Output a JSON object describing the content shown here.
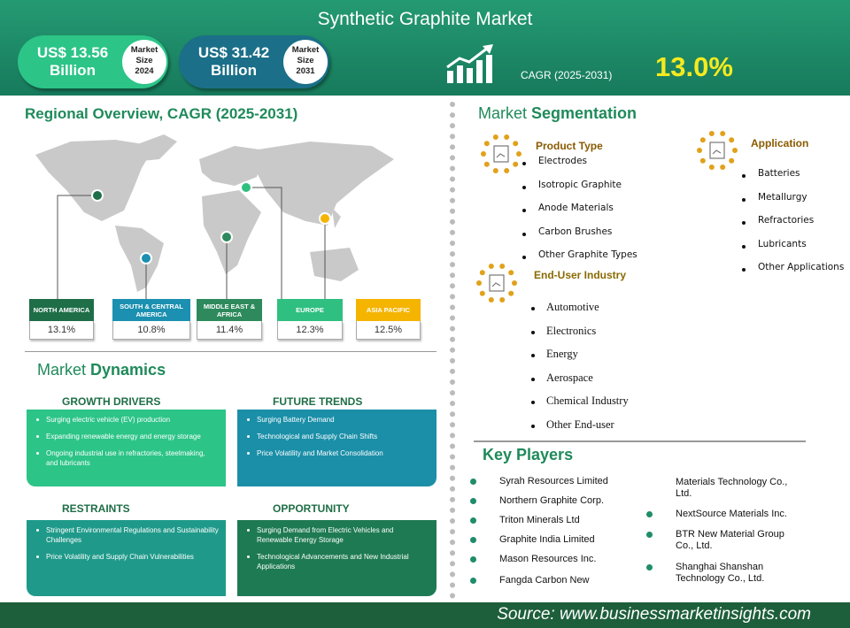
{
  "header": {
    "title": "Synthetic Graphite Market",
    "market_size": [
      {
        "value": "US$ 13.56 Billion",
        "label": "Market Size 2024"
      },
      {
        "value": "US$ 31.42 Billion",
        "label": "Market Size 2031"
      }
    ],
    "cagr_label": "CAGR (2025-2031)",
    "cagr_value": "13.0%"
  },
  "regional": {
    "title": "Regional Overview, CAGR (2025-2031)",
    "regions": [
      {
        "name": "NORTH AMERICA",
        "cagr": "13.1%"
      },
      {
        "name": "SOUTH & CENTRAL AMERICA",
        "cagr": "10.8%"
      },
      {
        "name": "MIDDLE EAST & AFRICA",
        "cagr": "11.4%"
      },
      {
        "name": "EUROPE",
        "cagr": "12.3%"
      },
      {
        "name": "ASIA PACIFIC",
        "cagr": "12.5%"
      }
    ]
  },
  "segmentation": {
    "title": [
      "Market",
      "Segmentation"
    ],
    "groups": [
      {
        "title": "Product Type",
        "items": [
          "Electrodes",
          "Isotropic Graphite",
          "Anode Materials",
          "Carbon Brushes",
          "Other Graphite Types"
        ]
      },
      {
        "title": "Application",
        "items": [
          "Batteries",
          "Metallurgy",
          "Refractories",
          "Lubricants",
          "Other Applications"
        ]
      },
      {
        "title": "End-User Industry",
        "items": [
          "Automotive",
          "Electronics",
          "Energy",
          "Aerospace",
          "Chemical Industry",
          "Other End-user"
        ]
      }
    ]
  },
  "dynamics": {
    "title": [
      "Market",
      "Dynamics"
    ],
    "cards": [
      {
        "title": "GROWTH DRIVERS",
        "items": [
          "Surging electric vehicle (EV) production",
          "Expanding renewable energy and energy storage",
          "Ongoing industrial use in refractories, steelmaking, and lubricants"
        ]
      },
      {
        "title": "FUTURE TRENDS",
        "items": [
          "Surging Battery Demand",
          "Technological and Supply Chain Shifts",
          "Price Volatility and Market Consolidation"
        ]
      },
      {
        "title": "RESTRAINTS",
        "items": [
          "Stringent Environmental Regulations and Sustainability Challenges",
          "Price Volatility and Supply Chain Vulnerabilities"
        ]
      },
      {
        "title": "OPPORTUNITY",
        "items": [
          "Surging Demand from Electric Vehicles and Renewable Energy Storage",
          "Technological Advancements and New Industrial Applications"
        ]
      }
    ]
  },
  "key_players": {
    "title": "Key Players",
    "left": [
      "Syrah Resources Limited",
      "Northern Graphite Corp.",
      "Triton Minerals Ltd",
      "Graphite India Limited",
      "Mason Resources Inc.",
      "Fangda Carbon New"
    ],
    "right": [
      "Materials Technology Co., Ltd.",
      "NextSource Materials Inc.",
      "BTR New Material Group Co., Ltd.",
      "Shanghai Shanshan Technology Co., Ltd."
    ]
  },
  "footer": {
    "source": "Source: www.businessmarketinsights.com"
  }
}
